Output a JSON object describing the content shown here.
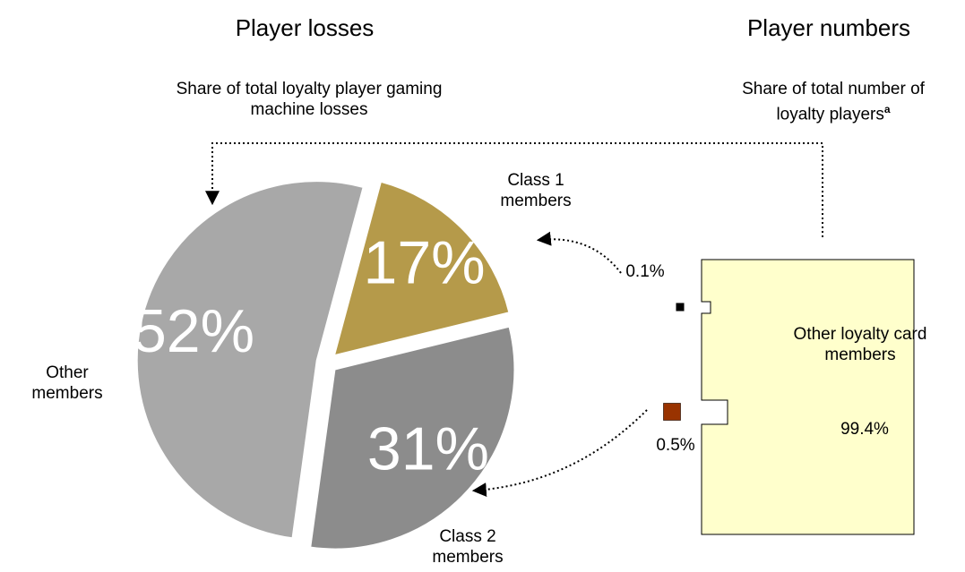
{
  "chart_data": [
    {
      "type": "pie",
      "title": "Player losses",
      "subtitle": "Share of total loyalty player gaming machine losses",
      "categories": [
        "Class 1 members",
        "Class 2 members",
        "Other members"
      ],
      "values": [
        17,
        31,
        52
      ],
      "value_labels": [
        "17%",
        "31%",
        "52%"
      ],
      "colors": [
        "#b59a4a",
        "#8c8c8c",
        "#a8a8a8"
      ]
    },
    {
      "type": "square",
      "title": "Player numbers",
      "subtitle": "Share of total number of loyalty players",
      "subtitle_marker": "a",
      "categories": [
        null,
        null,
        "Other loyalty card members"
      ],
      "values": [
        0.1,
        0.5,
        99.4
      ],
      "value_labels": [
        "0.1%",
        "0.5%",
        "99.4%"
      ],
      "colors": [
        "#000000",
        "#993300",
        "#ffffcc"
      ]
    }
  ]
}
